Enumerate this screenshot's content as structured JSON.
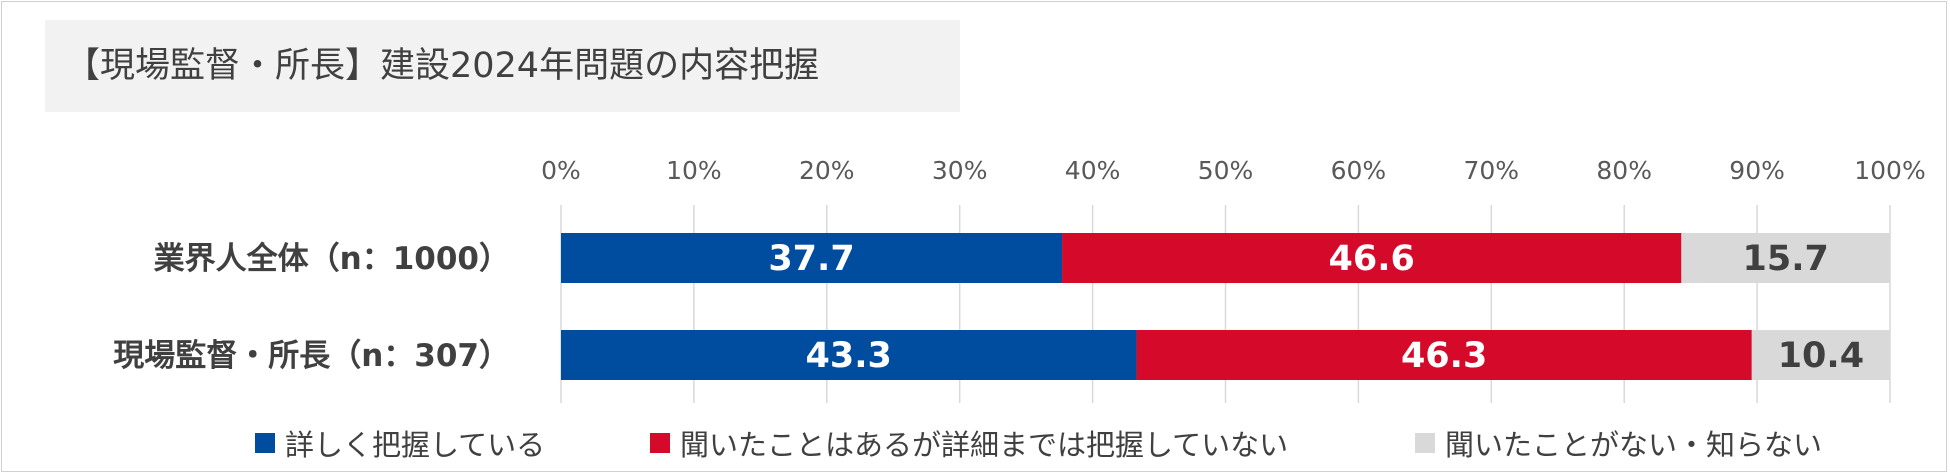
{
  "chart_data": {
    "type": "bar",
    "orientation": "horizontal",
    "stacked": true,
    "title": "【現場監督・所長】建設2024年問題の内容把握",
    "categories": [
      "業界人全体（n：1000）",
      "現場監督・所長（n：307）"
    ],
    "series": [
      {
        "name": "詳しく把握している",
        "values": [
          37.7,
          43.3
        ],
        "color": "#004C9E",
        "label_color": "#ffffff"
      },
      {
        "name": "聞いたことはあるが詳細までは把握していない",
        "values": [
          46.6,
          46.3
        ],
        "color": "#D50A2B",
        "label_color": "#ffffff"
      },
      {
        "name": "聞いたことがない・知らない",
        "values": [
          15.7,
          10.4
        ],
        "color": "#D9D9D9",
        "label_color": "#404040"
      }
    ],
    "xlim": [
      0,
      100
    ],
    "xticks": [
      "0%",
      "10%",
      "20%",
      "30%",
      "40%",
      "50%",
      "60%",
      "70%",
      "80%",
      "90%",
      "100%"
    ],
    "axis_position": "top",
    "grid": true,
    "legend_position": "bottom"
  }
}
